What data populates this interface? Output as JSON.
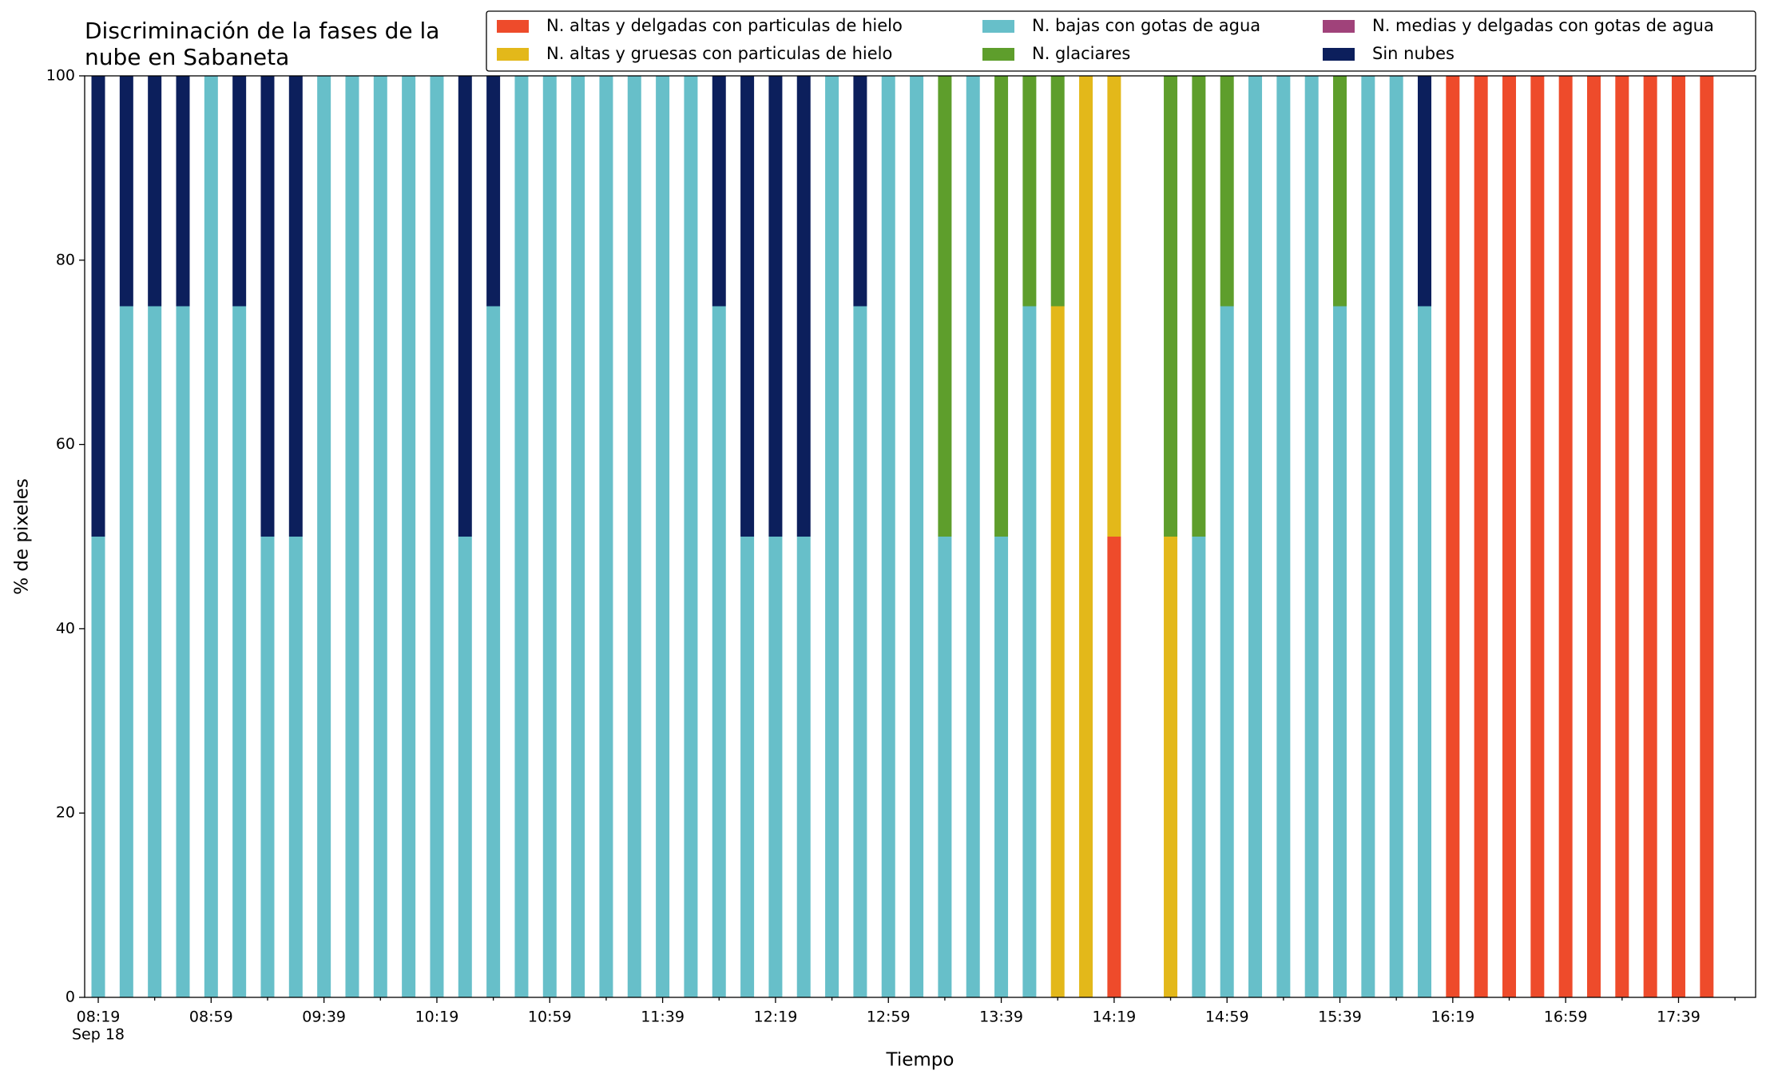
{
  "chart_data": {
    "type": "stacked_bar",
    "title": "Discriminación de la fases de la\nnube en Sabaneta",
    "xlabel": "Tiempo",
    "ylabel": "% de pixeles",
    "date_label": "Sep 18",
    "categories": [
      "08:19",
      null,
      null,
      null,
      "08:59",
      null,
      null,
      null,
      "09:39",
      null,
      null,
      null,
      "10:19",
      null,
      null,
      null,
      "10:59",
      null,
      null,
      null,
      "11:39",
      null,
      null,
      null,
      "12:19",
      null,
      null,
      null,
      "12:59",
      null,
      null,
      null,
      "13:39",
      null,
      null,
      null,
      "14:19",
      null,
      null,
      null,
      "14:59",
      null,
      null,
      null,
      "15:39",
      null,
      null,
      null,
      "16:19",
      null,
      null,
      null,
      "16:59",
      null,
      null,
      null,
      "17:39",
      null
    ],
    "ylim": [
      0,
      100
    ],
    "yticks": [
      0,
      20,
      40,
      60,
      80,
      100
    ],
    "legend": "upper right",
    "series": [
      {
        "name": "N. altas y delgadas con particulas de hielo",
        "color": "#ee4b2b",
        "values": [
          0,
          0,
          0,
          0,
          0,
          0,
          0,
          0,
          0,
          0,
          0,
          0,
          0,
          0,
          0,
          0,
          0,
          0,
          0,
          0,
          0,
          0,
          0,
          0,
          0,
          0,
          0,
          0,
          0,
          0,
          0,
          0,
          0,
          0,
          0,
          0,
          50,
          0,
          0,
          0,
          0,
          0,
          0,
          0,
          0,
          0,
          0,
          0,
          100,
          100,
          100,
          100,
          100,
          100,
          100,
          100,
          100,
          100
        ]
      },
      {
        "name": "N. altas y gruesas con particulas de hielo",
        "color": "#e3b81a",
        "values": [
          0,
          0,
          0,
          0,
          0,
          0,
          0,
          0,
          0,
          0,
          0,
          0,
          0,
          0,
          0,
          0,
          0,
          0,
          0,
          0,
          0,
          0,
          0,
          0,
          0,
          0,
          0,
          0,
          0,
          0,
          0,
          0,
          0,
          0,
          75,
          100,
          50,
          0,
          50,
          0,
          0,
          0,
          0,
          0,
          0,
          0,
          0,
          0,
          0,
          0,
          0,
          0,
          0,
          0,
          0,
          0,
          0,
          0
        ]
      },
      {
        "name": "N. bajas con gotas de agua",
        "color": "#67bfc9",
        "values": [
          50,
          75,
          75,
          75,
          100,
          75,
          50,
          50,
          100,
          100,
          100,
          100,
          100,
          50,
          75,
          100,
          100,
          100,
          100,
          100,
          100,
          100,
          75,
          50,
          50,
          50,
          100,
          75,
          100,
          100,
          50,
          100,
          50,
          75,
          0,
          0,
          0,
          0,
          0,
          50,
          75,
          100,
          100,
          100,
          75,
          100,
          100,
          75,
          0,
          0,
          0,
          0,
          0,
          0,
          0,
          0,
          0,
          0
        ]
      },
      {
        "name": "N. glaciares",
        "color": "#5e9e2c",
        "values": [
          0,
          0,
          0,
          0,
          0,
          0,
          0,
          0,
          0,
          0,
          0,
          0,
          0,
          0,
          0,
          0,
          0,
          0,
          0,
          0,
          0,
          0,
          0,
          0,
          0,
          0,
          0,
          0,
          0,
          0,
          50,
          0,
          50,
          25,
          25,
          0,
          0,
          0,
          50,
          50,
          25,
          0,
          0,
          0,
          25,
          0,
          0,
          0,
          0,
          0,
          0,
          0,
          0,
          0,
          0,
          0,
          0,
          0
        ]
      },
      {
        "name": "N. medias y delgadas con gotas de agua",
        "color": "#a0427a",
        "values": [
          0,
          0,
          0,
          0,
          0,
          0,
          0,
          0,
          0,
          0,
          0,
          0,
          0,
          0,
          0,
          0,
          0,
          0,
          0,
          0,
          0,
          0,
          0,
          0,
          0,
          0,
          0,
          0,
          0,
          0,
          0,
          0,
          0,
          0,
          0,
          0,
          0,
          0,
          0,
          0,
          0,
          0,
          0,
          0,
          0,
          0,
          0,
          0,
          0,
          0,
          0,
          0,
          0,
          0,
          0,
          0,
          0,
          0
        ]
      },
      {
        "name": "Sin nubes",
        "color": "#0c1f5c",
        "values": [
          50,
          25,
          25,
          25,
          0,
          25,
          50,
          50,
          0,
          0,
          0,
          0,
          0,
          50,
          25,
          0,
          0,
          0,
          0,
          0,
          0,
          0,
          25,
          50,
          50,
          50,
          0,
          25,
          0,
          0,
          0,
          0,
          0,
          0,
          0,
          0,
          0,
          0,
          0,
          0,
          0,
          0,
          0,
          0,
          0,
          0,
          0,
          25,
          0,
          0,
          0,
          0,
          0,
          0,
          0,
          0,
          0,
          0
        ]
      }
    ]
  }
}
